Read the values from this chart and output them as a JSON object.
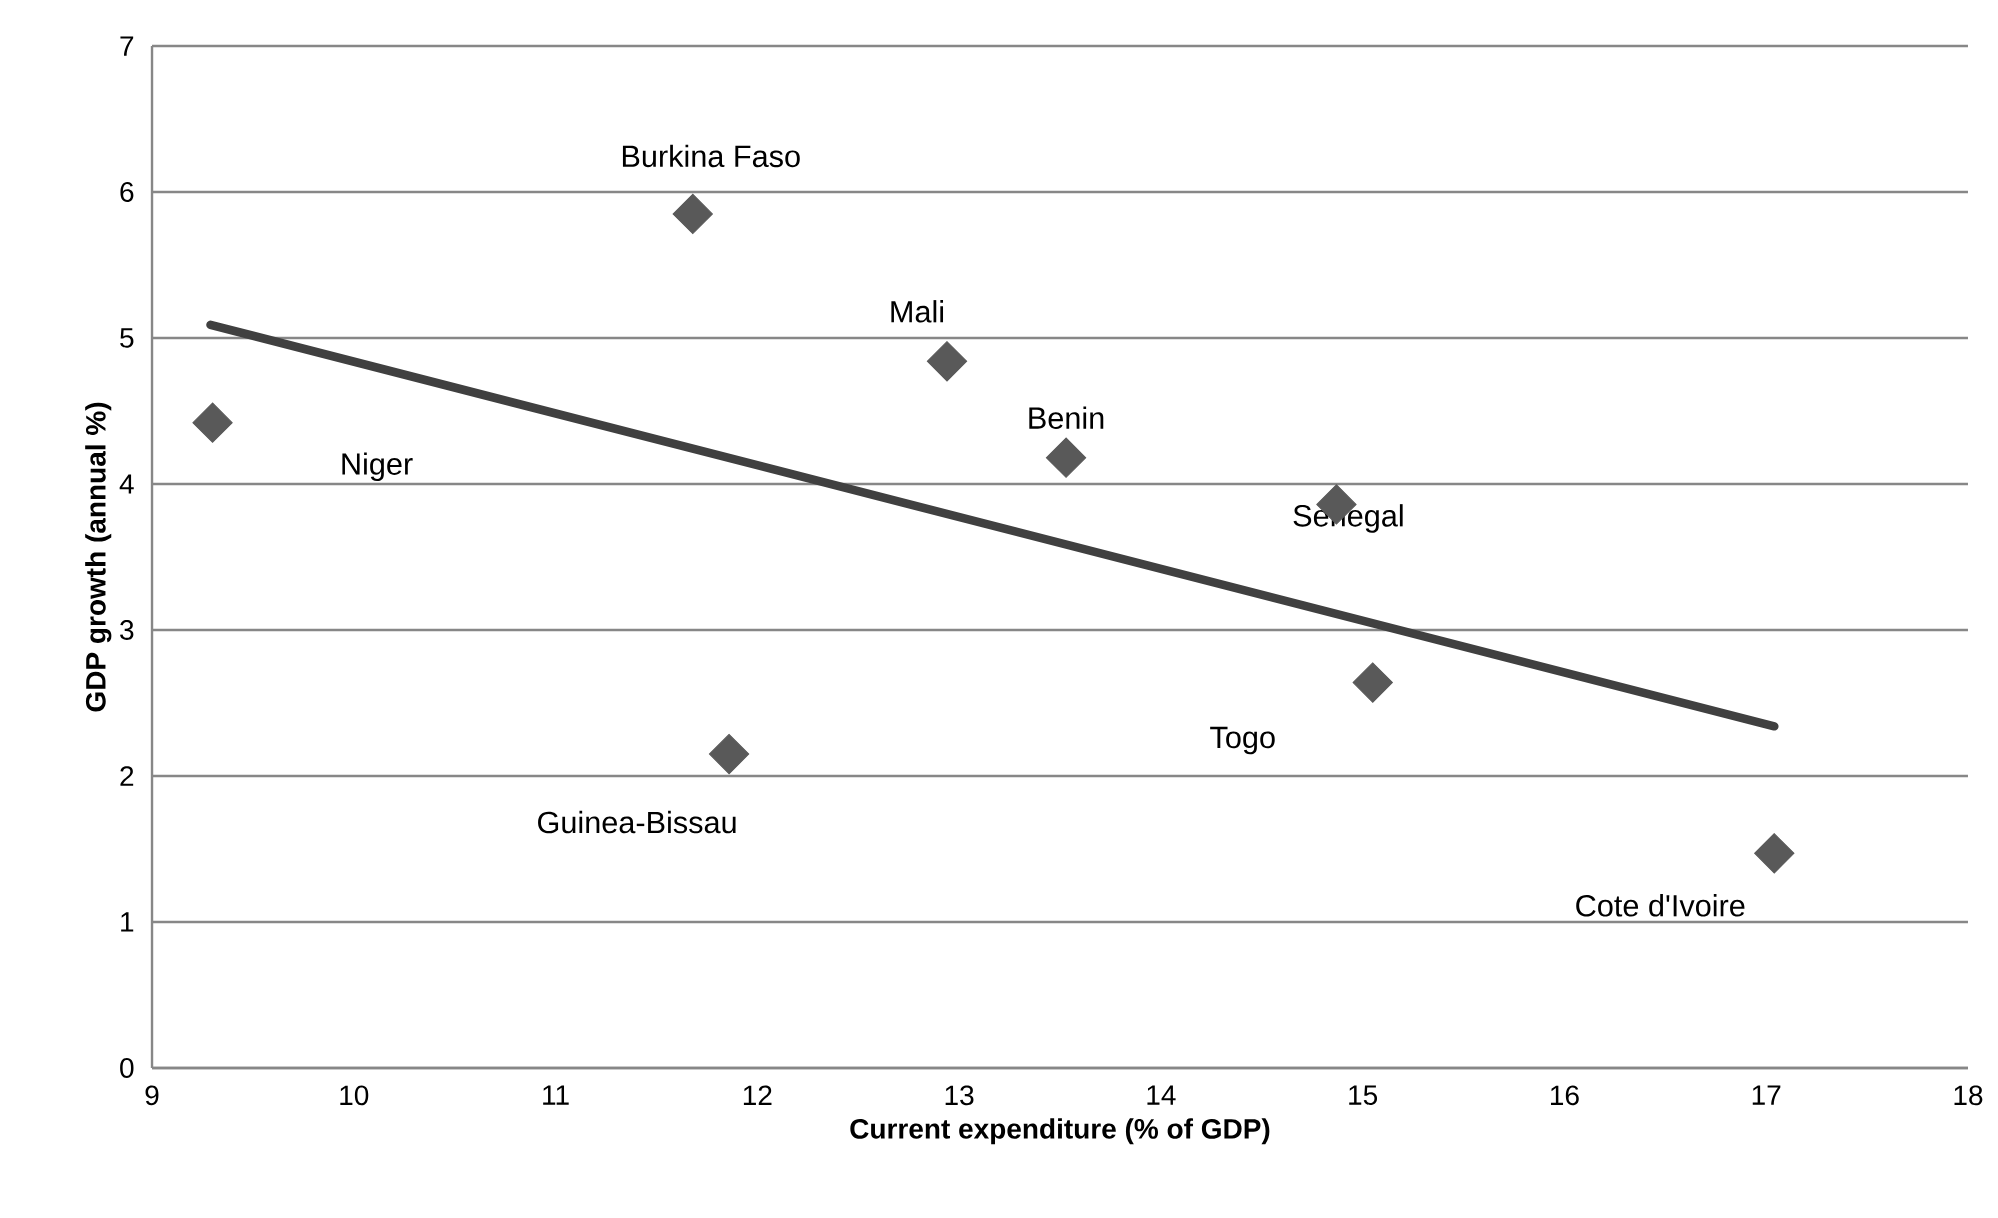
{
  "chart_data": {
    "type": "scatter",
    "xlabel": "Current expenditure (% of GDP)",
    "ylabel": "GDP growth (annual %)",
    "xlim": [
      9,
      18
    ],
    "ylim": [
      0,
      7
    ],
    "xticks": [
      9,
      10,
      11,
      12,
      13,
      14,
      15,
      16,
      17,
      18
    ],
    "yticks": [
      0,
      1,
      2,
      3,
      4,
      5,
      6,
      7
    ],
    "grid": "y",
    "marker": "diamond",
    "series": [
      {
        "type": "scatter",
        "color": "#595959",
        "x": [
          9.3,
          11.68,
          12.94,
          13.53,
          11.86,
          14.87,
          15.05,
          17.04
        ],
        "values": [
          4.42,
          5.85,
          4.84,
          4.18,
          2.15,
          3.86,
          2.64,
          1.47
        ]
      },
      {
        "type": "line",
        "color": "#404040",
        "marker": "none",
        "x": [
          9.29,
          17.04
        ],
        "values": [
          5.09,
          2.34
        ]
      }
    ],
    "annotations": [
      "Niger",
      {
        "text": "Burkina Faso",
        "x": 11.68,
        "y": 5.85
      },
      {
        "text": "Mali",
        "x": 12.94,
        "y": 4.84
      },
      {
        "text": "Benin",
        "x": 13.53,
        "y": 4.18
      },
      {
        "text": "Guinea-Bissau",
        "x": 11.86,
        "y": 2.15
      },
      {
        "text": "Senegal",
        "x": 14.87,
        "y": 3.86
      },
      "Togo",
      {
        "text": "Cote d'Ivoire",
        "x": 17.04,
        "y": 1.47
      }
    ]
  }
}
